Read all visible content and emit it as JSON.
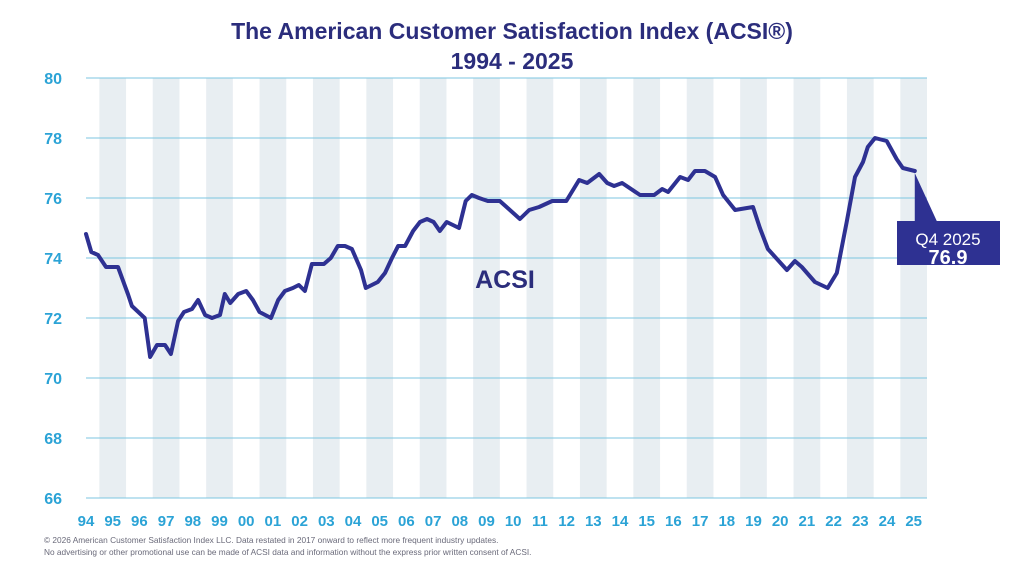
{
  "chart_data": {
    "type": "line",
    "title": "The American Customer Satisfaction Index (ACSI®)",
    "subtitle": "1994 - 2025",
    "xlabel": "",
    "ylabel": "",
    "ylim": [
      66,
      80
    ],
    "yticks": [
      66,
      68,
      70,
      72,
      74,
      76,
      78,
      80
    ],
    "xlim": [
      1994,
      2025
    ],
    "xtick_labels": [
      "94",
      "95",
      "96",
      "97",
      "98",
      "99",
      "00",
      "01",
      "02",
      "03",
      "04",
      "05",
      "06",
      "07",
      "08",
      "09",
      "10",
      "11",
      "12",
      "13",
      "14",
      "15",
      "16",
      "17",
      "18",
      "19",
      "20",
      "21",
      "22",
      "23",
      "24",
      "25"
    ],
    "grid": true,
    "alternating_year_bands": true,
    "series": [
      {
        "name": "ACSI",
        "color": "#2e3192",
        "points": [
          [
            1994.0,
            74.8
          ],
          [
            1994.2,
            74.2
          ],
          [
            1994.45,
            74.1
          ],
          [
            1994.75,
            73.7
          ],
          [
            1995.2,
            73.7
          ],
          [
            1995.57,
            72.8
          ],
          [
            1995.72,
            72.4
          ],
          [
            1996.2,
            72.0
          ],
          [
            1996.4,
            70.7
          ],
          [
            1996.66,
            71.1
          ],
          [
            1996.96,
            71.1
          ],
          [
            1997.18,
            70.8
          ],
          [
            1997.45,
            71.9
          ],
          [
            1997.67,
            72.2
          ],
          [
            1997.97,
            72.3
          ],
          [
            1998.2,
            72.6
          ],
          [
            1998.46,
            72.1
          ],
          [
            1998.72,
            72.0
          ],
          [
            1999.02,
            72.1
          ],
          [
            1999.2,
            72.8
          ],
          [
            1999.4,
            72.5
          ],
          [
            1999.7,
            72.8
          ],
          [
            2000.0,
            72.9
          ],
          [
            2000.25,
            72.6
          ],
          [
            2000.5,
            72.2
          ],
          [
            2000.93,
            72.0
          ],
          [
            2001.2,
            72.6
          ],
          [
            2001.45,
            72.9
          ],
          [
            2001.75,
            73.0
          ],
          [
            2001.97,
            73.1
          ],
          [
            2002.2,
            72.9
          ],
          [
            2002.46,
            73.8
          ],
          [
            2002.91,
            73.8
          ],
          [
            2003.17,
            74.0
          ],
          [
            2003.43,
            74.4
          ],
          [
            2003.7,
            74.4
          ],
          [
            2003.96,
            74.3
          ],
          [
            2004.3,
            73.6
          ],
          [
            2004.48,
            73.0
          ],
          [
            2004.93,
            73.2
          ],
          [
            2005.2,
            73.5
          ],
          [
            2005.46,
            74.0
          ],
          [
            2005.69,
            74.4
          ],
          [
            2005.95,
            74.4
          ],
          [
            2006.25,
            74.9
          ],
          [
            2006.51,
            75.2
          ],
          [
            2006.77,
            75.3
          ],
          [
            2007.02,
            75.2
          ],
          [
            2007.25,
            74.9
          ],
          [
            2007.51,
            75.2
          ],
          [
            2007.74,
            75.1
          ],
          [
            2007.97,
            75.0
          ],
          [
            2008.22,
            75.9
          ],
          [
            2008.45,
            76.1
          ],
          [
            2008.72,
            76.0
          ],
          [
            2009.05,
            75.9
          ],
          [
            2009.5,
            75.9
          ],
          [
            2010.25,
            75.3
          ],
          [
            2010.6,
            75.6
          ],
          [
            2010.97,
            75.7
          ],
          [
            2011.46,
            75.9
          ],
          [
            2011.99,
            75.9
          ],
          [
            2012.47,
            76.6
          ],
          [
            2012.77,
            76.5
          ],
          [
            2013.22,
            76.8
          ],
          [
            2013.52,
            76.5
          ],
          [
            2013.78,
            76.4
          ],
          [
            2014.08,
            76.5
          ],
          [
            2014.75,
            76.1
          ],
          [
            2015.28,
            76.1
          ],
          [
            2015.58,
            76.3
          ],
          [
            2015.8,
            76.2
          ],
          [
            2016.25,
            76.7
          ],
          [
            2016.55,
            76.6
          ],
          [
            2016.81,
            76.9
          ],
          [
            2017.18,
            76.9
          ],
          [
            2017.56,
            76.7
          ],
          [
            2017.86,
            76.1
          ],
          [
            2018.31,
            75.6
          ],
          [
            2018.98,
            75.7
          ],
          [
            2019.24,
            75.0
          ],
          [
            2019.54,
            74.3
          ],
          [
            2020.25,
            73.6
          ],
          [
            2020.55,
            73.9
          ],
          [
            2020.81,
            73.7
          ],
          [
            2021.3,
            73.2
          ],
          [
            2021.78,
            73.0
          ],
          [
            2022.12,
            73.5
          ],
          [
            2022.49,
            75.2
          ],
          [
            2022.8,
            76.7
          ],
          [
            2023.1,
            77.2
          ],
          [
            2023.28,
            77.7
          ],
          [
            2023.55,
            78.0
          ],
          [
            2023.99,
            77.9
          ],
          [
            2024.36,
            77.3
          ],
          [
            2024.59,
            77.0
          ],
          [
            2025.04,
            76.9
          ]
        ]
      }
    ],
    "series_label": "ACSI",
    "annotation": {
      "period": "Q4 2025",
      "value": "76.9"
    },
    "colors": {
      "title": "#2b2d7c",
      "tick": "#2ba3d6",
      "grid": "#7cc6e0",
      "band": "#e8eef2",
      "line": "#2e3192",
      "callout": "#2e3192"
    }
  },
  "footer": {
    "line1": "© 2026 American Customer Satisfaction Index LLC.  Data restated in 2017 onward to reflect more frequent industry updates.",
    "line2": "No advertising or other promotional use can be made of ACSI data and information without the express prior written consent of ACSI."
  }
}
